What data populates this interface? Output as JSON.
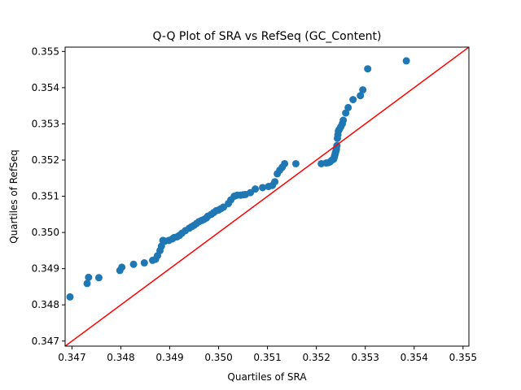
{
  "chart_data": {
    "type": "scatter",
    "title": "Q-Q Plot of SRA vs RefSeq (GC_Content)",
    "xlabel": "Quartiles of SRA",
    "ylabel": "Quartiles of RefSeq",
    "xlim": [
      0.34686,
      0.35512
    ],
    "ylim": [
      0.34686,
      0.35512
    ],
    "xticks": [
      "0.347",
      "0.348",
      "0.349",
      "0.350",
      "0.351",
      "0.352",
      "0.353",
      "0.354",
      "0.355"
    ],
    "yticks": [
      "0.347",
      "0.348",
      "0.349",
      "0.350",
      "0.351",
      "0.352",
      "0.353",
      "0.354",
      "0.355"
    ],
    "grid": false,
    "legend": "none",
    "marker_color": "#1f77b4",
    "reference_line": {
      "color": "#ff0000",
      "x": [
        0.34686,
        0.35512
      ],
      "y": [
        0.34686,
        0.35512
      ]
    },
    "series": [
      {
        "x": [
          0.34696,
          0.34731,
          0.34734,
          0.34755,
          0.34798,
          0.34802,
          0.34826,
          0.34848,
          0.34865,
          0.34871,
          0.34875,
          0.3488,
          0.34883,
          0.34886,
          0.3489,
          0.34898,
          0.34905,
          0.34909,
          0.34915,
          0.3492,
          0.34925,
          0.34932,
          0.3494,
          0.34945,
          0.3495,
          0.34955,
          0.3496,
          0.34965,
          0.3497,
          0.34975,
          0.34978,
          0.34985,
          0.3499,
          0.34995,
          0.35,
          0.35005,
          0.3501,
          0.3502,
          0.35025,
          0.35032,
          0.35038,
          0.35045,
          0.3505,
          0.35055,
          0.35065,
          0.35075,
          0.3509,
          0.35102,
          0.3511,
          0.35115,
          0.3512,
          0.35125,
          0.3513,
          0.35135,
          0.35158,
          0.3521,
          0.3522,
          0.35225,
          0.35228,
          0.35232,
          0.35235,
          0.35236,
          0.35237,
          0.35238,
          0.35239,
          0.3524,
          0.35241,
          0.35242,
          0.35243,
          0.35244,
          0.35245,
          0.35247,
          0.3525,
          0.35253,
          0.35255,
          0.3526,
          0.35265,
          0.35275,
          0.3529,
          0.35295,
          0.35305,
          0.35384
        ],
        "y": [
          0.34822,
          0.34859,
          0.34876,
          0.34875,
          0.34895,
          0.34904,
          0.34912,
          0.34916,
          0.34923,
          0.34926,
          0.34936,
          0.3495,
          0.34962,
          0.34978,
          0.34976,
          0.34978,
          0.34982,
          0.34986,
          0.34988,
          0.34992,
          0.34998,
          0.35005,
          0.35012,
          0.35016,
          0.3502,
          0.35025,
          0.3503,
          0.35033,
          0.35036,
          0.3504,
          0.35045,
          0.3505,
          0.35055,
          0.3506,
          0.35062,
          0.35066,
          0.3507,
          0.3508,
          0.3509,
          0.351,
          0.35103,
          0.35103,
          0.35104,
          0.35105,
          0.3511,
          0.3512,
          0.35124,
          0.35127,
          0.3513,
          0.3514,
          0.35162,
          0.35172,
          0.3518,
          0.3519,
          0.3519,
          0.3519,
          0.35192,
          0.35193,
          0.35195,
          0.352,
          0.35202,
          0.35205,
          0.3521,
          0.35215,
          0.3522,
          0.35225,
          0.3523,
          0.3524,
          0.3526,
          0.3527,
          0.3528,
          0.35285,
          0.35292,
          0.353,
          0.3531,
          0.3533,
          0.35345,
          0.35367,
          0.35378,
          0.35394,
          0.35452,
          0.35474
        ]
      }
    ]
  }
}
